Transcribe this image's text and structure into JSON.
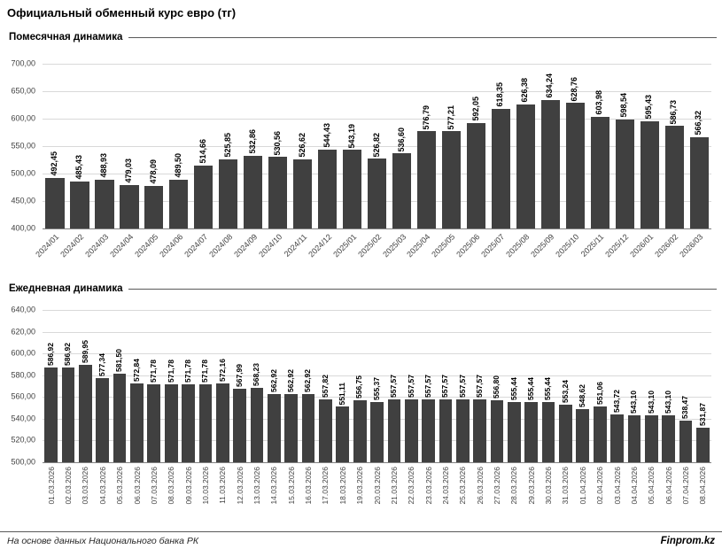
{
  "page_title": "Официальный обменный курс евро (тг)",
  "footer": {
    "source": "На основе данных Национального банка РК",
    "brand": "Finprom.kz"
  },
  "chart_data": [
    {
      "type": "bar",
      "title": "Помесячная динамика",
      "bar_color": "#404040",
      "grid": true,
      "x_label_rotation": 45,
      "ylim": [
        400,
        700
      ],
      "yticks": [
        "700,00",
        "650,00",
        "600,00",
        "550,00",
        "500,00",
        "450,00",
        "400,00"
      ],
      "categories": [
        "2024/01",
        "2024/02",
        "2024/03",
        "2024/04",
        "2024/05",
        "2024/06",
        "2024/07",
        "2024/08",
        "2024/09",
        "2024/10",
        "2024/11",
        "2024/12",
        "2025/01",
        "2025/02",
        "2025/03",
        "2025/04",
        "2025/05",
        "2025/06",
        "2025/07",
        "2025/08",
        "2025/09",
        "2025/10",
        "2025/11",
        "2025/12",
        "2026/01",
        "2026/02",
        "2026/03"
      ],
      "values": [
        492.45,
        485.43,
        488.93,
        479.03,
        478.09,
        489.5,
        514.66,
        525.85,
        532.86,
        530.56,
        526.62,
        544.43,
        543.19,
        526.82,
        536.6,
        576.79,
        577.21,
        592.05,
        618.35,
        626.38,
        634.24,
        628.76,
        603.98,
        598.54,
        595.43,
        586.73,
        566.32
      ],
      "value_labels": [
        "492,45",
        "485,43",
        "488,93",
        "479,03",
        "478,09",
        "489,50",
        "514,66",
        "525,85",
        "532,86",
        "530,56",
        "526,62",
        "544,43",
        "543,19",
        "526,82",
        "536,60",
        "576,79",
        "577,21",
        "592,05",
        "618,35",
        "626,38",
        "634,24",
        "628,76",
        "603,98",
        "598,54",
        "595,43",
        "586,73",
        "566,32"
      ]
    },
    {
      "type": "bar",
      "title": "Ежедневная динамика",
      "bar_color": "#404040",
      "grid": true,
      "x_label_rotation": 90,
      "ylim": [
        500,
        640
      ],
      "yticks": [
        "640,00",
        "620,00",
        "600,00",
        "580,00",
        "560,00",
        "540,00",
        "520,00",
        "500,00"
      ],
      "categories": [
        "01.03.2026",
        "02.03.2026",
        "03.03.2026",
        "04.03.2026",
        "05.03.2026",
        "06.03.2026",
        "07.03.2026",
        "08.03.2026",
        "09.03.2026",
        "10.03.2026",
        "11.03.2026",
        "12.03.2026",
        "13.03.2026",
        "14.03.2026",
        "15.03.2026",
        "16.03.2026",
        "17.03.2026",
        "18.03.2026",
        "19.03.2026",
        "20.03.2026",
        "21.03.2026",
        "22.03.2026",
        "23.03.2026",
        "24.03.2026",
        "25.03.2026",
        "26.03.2026",
        "27.03.2026",
        "28.03.2026",
        "29.03.2026",
        "30.03.2026",
        "31.03.2026",
        "01.04.2026",
        "02.04.2026",
        "03.04.2026",
        "04.04.2026",
        "05.04.2026",
        "06.04.2026",
        "07.04.2026",
        "08.04.2026"
      ],
      "values": [
        586.92,
        586.92,
        589.95,
        577.34,
        581.5,
        572.84,
        571.78,
        571.78,
        571.78,
        571.78,
        572.16,
        567.99,
        568.23,
        562.92,
        562.92,
        562.92,
        557.82,
        551.11,
        556.75,
        555.37,
        557.57,
        557.57,
        557.57,
        557.57,
        557.57,
        557.57,
        556.8,
        555.44,
        555.44,
        555.44,
        553.24,
        548.62,
        551.06,
        543.72,
        543.1,
        543.1,
        543.1,
        538.47,
        531.87
      ],
      "value_labels": [
        "586,92",
        "586,92",
        "589,95",
        "577,34",
        "581,50",
        "572,84",
        "571,78",
        "571,78",
        "571,78",
        "571,78",
        "572,16",
        "567,99",
        "568,23",
        "562,92",
        "562,92",
        "562,92",
        "557,82",
        "551,11",
        "556,75",
        "555,37",
        "557,57",
        "557,57",
        "557,57",
        "557,57",
        "557,57",
        "557,57",
        "556,80",
        "555,44",
        "555,44",
        "555,44",
        "553,24",
        "548,62",
        "551,06",
        "543,72",
        "543,10",
        "543,10",
        "543,10",
        "538,47",
        "531,87"
      ]
    }
  ]
}
